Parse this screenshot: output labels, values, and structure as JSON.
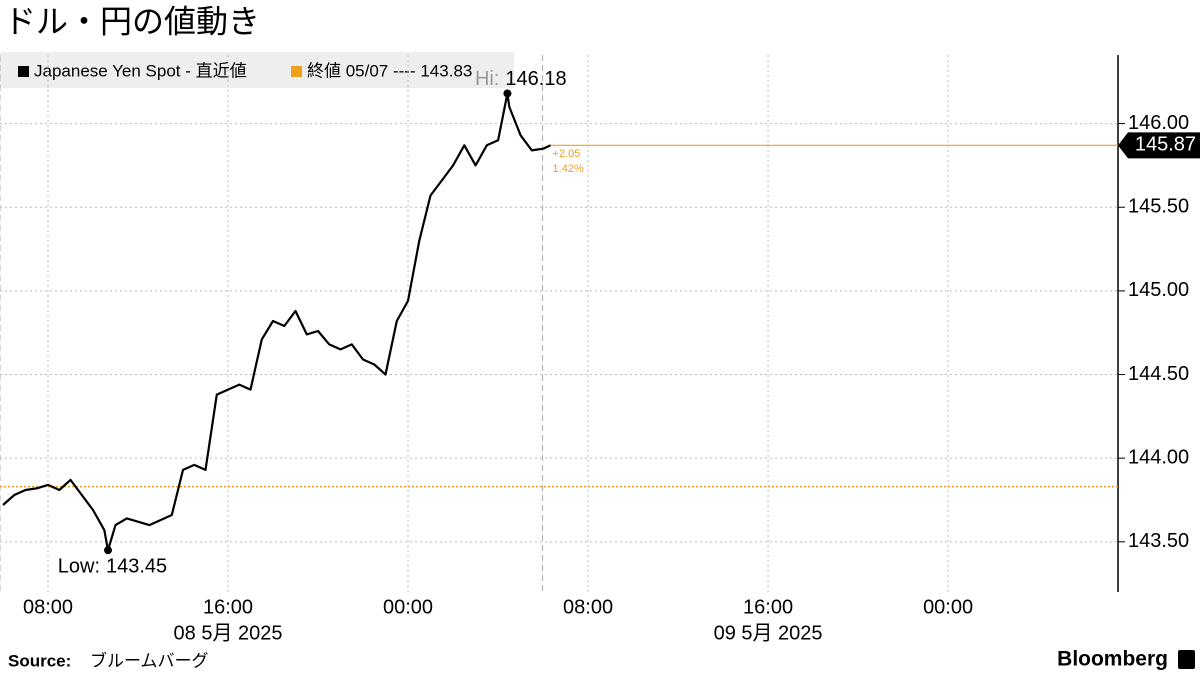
{
  "chart_data": {
    "type": "line",
    "title": "ドル・円の値動き",
    "x": [
      "2025-05-08T06:00",
      "2025-05-08T06:30",
      "2025-05-08T07:00",
      "2025-05-08T07:30",
      "2025-05-08T08:00",
      "2025-05-08T08:30",
      "2025-05-08T09:00",
      "2025-05-08T09:30",
      "2025-05-08T10:00",
      "2025-05-08T10:30",
      "2025-05-08T10:40",
      "2025-05-08T11:00",
      "2025-05-08T11:30",
      "2025-05-08T12:00",
      "2025-05-08T12:30",
      "2025-05-08T13:00",
      "2025-05-08T13:30",
      "2025-05-08T14:00",
      "2025-05-08T14:30",
      "2025-05-08T15:00",
      "2025-05-08T15:30",
      "2025-05-08T16:00",
      "2025-05-08T16:30",
      "2025-05-08T17:00",
      "2025-05-08T17:30",
      "2025-05-08T18:00",
      "2025-05-08T18:30",
      "2025-05-08T19:00",
      "2025-05-08T19:30",
      "2025-05-08T20:00",
      "2025-05-08T20:30",
      "2025-05-08T21:00",
      "2025-05-08T21:30",
      "2025-05-08T22:00",
      "2025-05-08T22:30",
      "2025-05-08T23:00",
      "2025-05-08T23:30",
      "2025-05-09T00:00",
      "2025-05-09T00:30",
      "2025-05-09T01:00",
      "2025-05-09T01:30",
      "2025-05-09T02:00",
      "2025-05-09T02:30",
      "2025-05-09T03:00",
      "2025-05-09T03:30",
      "2025-05-09T04:00",
      "2025-05-09T04:25",
      "2025-05-09T04:30",
      "2025-05-09T05:00",
      "2025-05-09T05:30",
      "2025-05-09T06:00",
      "2025-05-09T06:20"
    ],
    "series": [
      {
        "name": "Japanese Yen Spot - 直近値",
        "color": "#000000",
        "values": [
          143.72,
          143.78,
          143.81,
          143.82,
          143.84,
          143.81,
          143.87,
          143.78,
          143.69,
          143.57,
          143.45,
          143.6,
          143.64,
          143.62,
          143.6,
          143.63,
          143.66,
          143.93,
          143.96,
          143.93,
          144.38,
          144.41,
          144.44,
          144.41,
          144.71,
          144.82,
          144.79,
          144.88,
          144.74,
          144.76,
          144.68,
          144.65,
          144.68,
          144.59,
          144.56,
          144.5,
          144.82,
          144.94,
          145.3,
          145.57,
          145.66,
          145.75,
          145.87,
          145.75,
          145.87,
          145.9,
          146.18,
          146.1,
          145.93,
          145.84,
          145.85,
          145.87
        ]
      }
    ],
    "xlim": [
      "2025-05-08T05:52",
      "2025-05-10T07:33"
    ],
    "xticks": [
      {
        "value": "2025-05-08T08:00",
        "label": "08:00"
      },
      {
        "value": "2025-05-08T16:00",
        "label": "16:00"
      },
      {
        "value": "2025-05-09T00:00",
        "label": "00:00"
      },
      {
        "value": "2025-05-09T08:00",
        "label": "08:00"
      },
      {
        "value": "2025-05-09T16:00",
        "label": "16:00"
      },
      {
        "value": "2025-05-10T00:00",
        "label": "00:00"
      }
    ],
    "x_date_labels": [
      {
        "value": "2025-05-08T16:00",
        "label": "08 5月 2025"
      },
      {
        "value": "2025-05-09T16:00",
        "label": "09 5月 2025"
      }
    ],
    "ylim": [
      143.2,
      146.41
    ],
    "yticks": [
      {
        "value": 143.5,
        "label": "143.50"
      },
      {
        "value": 144,
        "label": "144.00"
      },
      {
        "value": 144.5,
        "label": "144.50"
      },
      {
        "value": 145,
        "label": "145.00"
      },
      {
        "value": 145.5,
        "label": "145.50"
      },
      {
        "value": 146,
        "label": "146.00"
      }
    ],
    "grid": true,
    "reference_line": {
      "legend_label": "終値 05/07 ---- 143.83",
      "value": 143.83,
      "color": "#f0a01e"
    },
    "last": {
      "value": 145.87,
      "label": "145.87"
    },
    "change": {
      "value": 2.05,
      "label": "+2.05"
    },
    "change_pct": {
      "value": 1.42,
      "label": "1.42%"
    },
    "high": {
      "label": "Hi:",
      "value": 146.18,
      "x": "2025-05-09T04:25"
    },
    "low": {
      "label": "Low:",
      "value": 143.45,
      "x": "2025-05-08T10:40"
    },
    "source_label": "Source:",
    "source": "ブルームバーグ",
    "brand": "Bloomberg"
  }
}
